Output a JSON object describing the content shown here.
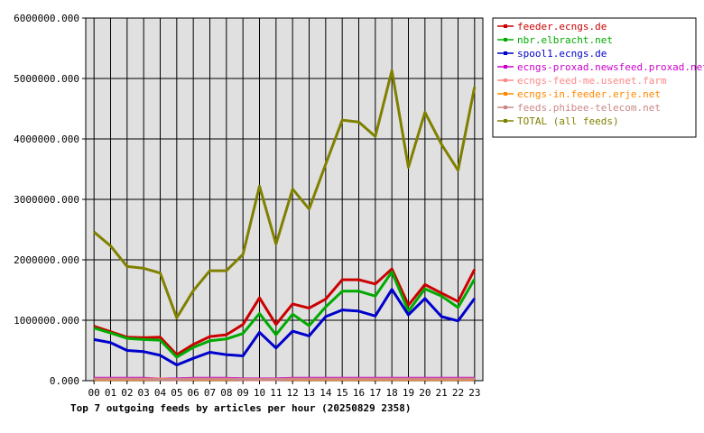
{
  "chart_data": {
    "type": "line",
    "title": "Top 7 outgoing feeds by articles per hour (20250829 2358)",
    "xlabel": "",
    "ylabel": "",
    "categories": [
      "00",
      "01",
      "02",
      "03",
      "04",
      "05",
      "06",
      "07",
      "08",
      "09",
      "10",
      "11",
      "12",
      "13",
      "14",
      "15",
      "16",
      "17",
      "18",
      "19",
      "20",
      "21",
      "22",
      "23"
    ],
    "ylim": [
      0,
      6000000
    ],
    "y_ticks": [
      {
        "value": 0,
        "label": "0.000"
      },
      {
        "value": 1000000,
        "label": "1000000.000"
      },
      {
        "value": 2000000,
        "label": "2000000.000"
      },
      {
        "value": 3000000,
        "label": "3000000.000"
      },
      {
        "value": 4000000,
        "label": "4000000.000"
      },
      {
        "value": 5000000,
        "label": "5000000.000"
      },
      {
        "value": 6000000,
        "label": "6000000.000"
      }
    ],
    "grid": true,
    "legend_position": "top-right",
    "series": [
      {
        "name": "feeder.ecngs.de",
        "color": "#cc0000",
        "values": [
          900000,
          810000,
          720000,
          710000,
          720000,
          430000,
          600000,
          730000,
          760000,
          930000,
          1370000,
          930000,
          1270000,
          1200000,
          1350000,
          1670000,
          1670000,
          1600000,
          1850000,
          1250000,
          1590000,
          1450000,
          1310000,
          1840000
        ]
      },
      {
        "name": "nbr.elbracht.net",
        "color": "#00aa00",
        "values": [
          870000,
          790000,
          700000,
          680000,
          670000,
          390000,
          550000,
          660000,
          690000,
          780000,
          1110000,
          760000,
          1100000,
          910000,
          1220000,
          1480000,
          1480000,
          1400000,
          1800000,
          1150000,
          1520000,
          1400000,
          1210000,
          1680000
        ]
      },
      {
        "name": "spool1.ecngs.de",
        "color": "#0000cc",
        "values": [
          680000,
          630000,
          500000,
          480000,
          420000,
          260000,
          370000,
          470000,
          430000,
          410000,
          800000,
          540000,
          820000,
          740000,
          1060000,
          1170000,
          1150000,
          1070000,
          1510000,
          1090000,
          1360000,
          1060000,
          990000,
          1360000
        ]
      },
      {
        "name": "ecngs-proxad.newsfeed.proxad.net",
        "color": "#cc00cc",
        "values": [
          40000,
          40000,
          40000,
          40000,
          30000,
          30000,
          40000,
          40000,
          40000,
          30000,
          30000,
          30000,
          40000,
          40000,
          40000,
          40000,
          40000,
          40000,
          40000,
          40000,
          40000,
          40000,
          40000,
          40000
        ]
      },
      {
        "name": "ecngs-feed-me.usenet.farm",
        "color": "#ff8888",
        "values": [
          30000,
          30000,
          30000,
          30000,
          30000,
          20000,
          30000,
          30000,
          30000,
          20000,
          20000,
          20000,
          30000,
          30000,
          30000,
          30000,
          30000,
          30000,
          30000,
          30000,
          30000,
          30000,
          30000,
          30000
        ]
      },
      {
        "name": "ecngs-in.feeder.erje.net",
        "color": "#ff8800",
        "values": [
          20000,
          20000,
          20000,
          20000,
          20000,
          20000,
          20000,
          20000,
          20000,
          20000,
          20000,
          20000,
          20000,
          20000,
          20000,
          20000,
          20000,
          20000,
          20000,
          20000,
          20000,
          20000,
          20000,
          20000
        ]
      },
      {
        "name": "feeds.phibee-telecom.net",
        "color": "#cc8888",
        "values": [
          30000,
          30000,
          30000,
          30000,
          20000,
          20000,
          30000,
          30000,
          30000,
          20000,
          20000,
          20000,
          30000,
          30000,
          30000,
          30000,
          30000,
          30000,
          30000,
          30000,
          30000,
          30000,
          30000,
          30000
        ]
      },
      {
        "name": "TOTAL (all feeds)",
        "color": "#808000",
        "values": [
          2460000,
          2230000,
          1890000,
          1860000,
          1780000,
          1040000,
          1490000,
          1820000,
          1820000,
          2090000,
          3220000,
          2260000,
          3170000,
          2840000,
          3580000,
          4310000,
          4280000,
          4040000,
          5130000,
          3530000,
          4440000,
          3910000,
          3480000,
          4860000
        ]
      }
    ]
  }
}
